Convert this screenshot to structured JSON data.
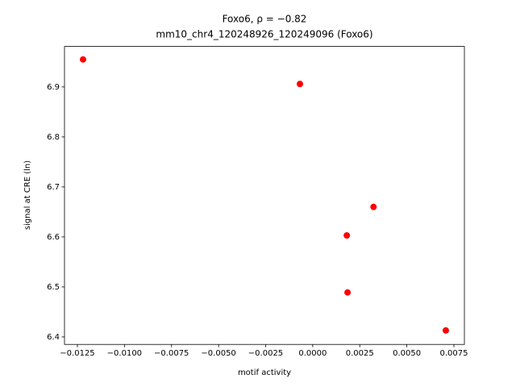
{
  "chart_data": {
    "type": "scatter",
    "title": "Foxo6, ρ = −0.82",
    "subtitle": "mm10_chr4_120248926_120249096 (Foxo6)",
    "x_label": "motif activity",
    "y_label": "signal at CRE (ln)",
    "color": "#ff0000",
    "x": [
      -0.0122,
      -0.00068,
      0.00323,
      0.00181,
      0.00185,
      0.00707
    ],
    "values": [
      6.955,
      6.906,
      6.66,
      6.603,
      6.489,
      6.413
    ],
    "xlim": [
      -0.013185,
      0.008057
    ],
    "ylim": [
      6.385,
      6.981
    ],
    "xticks": [
      {
        "value": -0.0125,
        "label": "−0.0125"
      },
      {
        "value": -0.01,
        "label": "−0.0100"
      },
      {
        "value": -0.0075,
        "label": "−0.0075"
      },
      {
        "value": -0.005,
        "label": "−0.0050"
      },
      {
        "value": -0.0025,
        "label": "−0.0025"
      },
      {
        "value": 0,
        "label": "0.0000"
      },
      0.0025,
      {
        "value": 0.005,
        "label": "0.0050"
      },
      0.0075
    ],
    "yticks": [
      6.4,
      6.5,
      6.6,
      6.7,
      6.8,
      6.9
    ]
  }
}
